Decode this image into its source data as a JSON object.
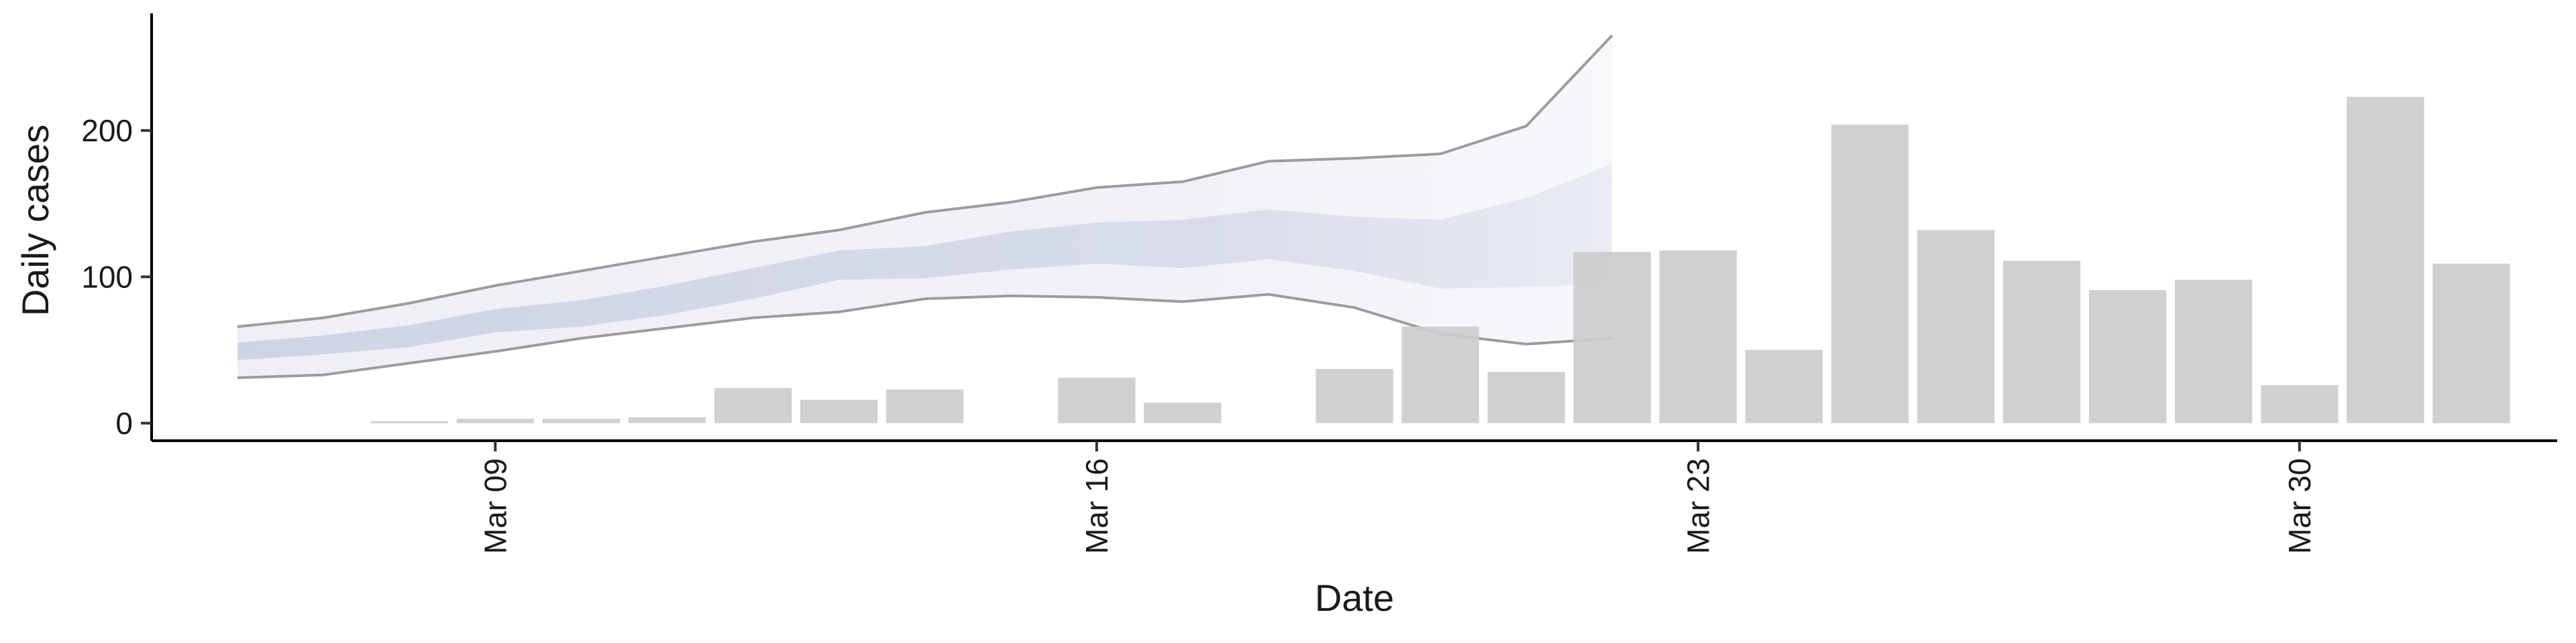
{
  "chart_data": {
    "type": "bar",
    "xlabel": "Date",
    "ylabel": "Daily cases",
    "x_axis": {
      "ticks": [
        {
          "date": "2020-03-09",
          "label": "Mar 09"
        },
        {
          "date": "2020-03-16",
          "label": "Mar 16"
        },
        {
          "date": "2020-03-23",
          "label": "Mar 23"
        },
        {
          "date": "2020-03-30",
          "label": "Mar 30"
        }
      ],
      "xlim": [
        "2020-03-05",
        "2020-04-02"
      ]
    },
    "y_axis": {
      "ticks": [
        {
          "value": 0,
          "label": "0"
        },
        {
          "value": 100,
          "label": "100"
        },
        {
          "value": 200,
          "label": "200"
        }
      ],
      "ylim": [
        -12,
        280
      ]
    },
    "grid": false,
    "series": [
      {
        "kind": "bar",
        "color": "#cccccc",
        "points": [
          {
            "date": "2020-03-08",
            "value": 1
          },
          {
            "date": "2020-03-09",
            "value": 3
          },
          {
            "date": "2020-03-10",
            "value": 3
          },
          {
            "date": "2020-03-11",
            "value": 4
          },
          {
            "date": "2020-03-12",
            "value": 24
          },
          {
            "date": "2020-03-13",
            "value": 16
          },
          {
            "date": "2020-03-14",
            "value": 23
          },
          {
            "date": "2020-03-16",
            "value": 31
          },
          {
            "date": "2020-03-17",
            "value": 14
          },
          {
            "date": "2020-03-19",
            "value": 37
          },
          {
            "date": "2020-03-20",
            "value": 66
          },
          {
            "date": "2020-03-21",
            "value": 35
          },
          {
            "date": "2020-03-22",
            "value": 117
          },
          {
            "date": "2020-03-23",
            "value": 118
          },
          {
            "date": "2020-03-24",
            "value": 50
          },
          {
            "date": "2020-03-25",
            "value": 204
          },
          {
            "date": "2020-03-26",
            "value": 132
          },
          {
            "date": "2020-03-27",
            "value": 111
          },
          {
            "date": "2020-03-28",
            "value": 91
          },
          {
            "date": "2020-03-29",
            "value": 98
          },
          {
            "date": "2020-03-30",
            "value": 26
          },
          {
            "date": "2020-03-31",
            "value": 223
          },
          {
            "date": "2020-04-01",
            "value": 109
          }
        ]
      },
      {
        "kind": "ribbon",
        "role": "outer interval",
        "line_color": "#8c8c8c",
        "fill_color": "#e8eaf2",
        "points": [
          {
            "date": "2020-03-06",
            "lower": 31,
            "upper": 66
          },
          {
            "date": "2020-03-07",
            "lower": 33,
            "upper": 72
          },
          {
            "date": "2020-03-08",
            "lower": 41,
            "upper": 82
          },
          {
            "date": "2020-03-09",
            "lower": 49,
            "upper": 94
          },
          {
            "date": "2020-03-10",
            "lower": 58,
            "upper": 104
          },
          {
            "date": "2020-03-11",
            "lower": 65,
            "upper": 114
          },
          {
            "date": "2020-03-12",
            "lower": 72,
            "upper": 124
          },
          {
            "date": "2020-03-13",
            "lower": 76,
            "upper": 132
          },
          {
            "date": "2020-03-14",
            "lower": 85,
            "upper": 144
          },
          {
            "date": "2020-03-15",
            "lower": 87,
            "upper": 151
          },
          {
            "date": "2020-03-16",
            "lower": 86,
            "upper": 161
          },
          {
            "date": "2020-03-17",
            "lower": 83,
            "upper": 165
          },
          {
            "date": "2020-03-18",
            "lower": 88,
            "upper": 179
          },
          {
            "date": "2020-03-19",
            "lower": 79,
            "upper": 181
          },
          {
            "date": "2020-03-20",
            "lower": 61,
            "upper": 184
          },
          {
            "date": "2020-03-21",
            "lower": 54,
            "upper": 203
          },
          {
            "date": "2020-03-22",
            "lower": 58,
            "upper": 265
          }
        ]
      },
      {
        "kind": "ribbon",
        "role": "inner interval",
        "fill_color": "#cdd3e4",
        "points": [
          {
            "date": "2020-03-06",
            "lower": 43,
            "upper": 55
          },
          {
            "date": "2020-03-07",
            "lower": 47,
            "upper": 60
          },
          {
            "date": "2020-03-08",
            "lower": 52,
            "upper": 67
          },
          {
            "date": "2020-03-09",
            "lower": 62,
            "upper": 78
          },
          {
            "date": "2020-03-10",
            "lower": 66,
            "upper": 84
          },
          {
            "date": "2020-03-11",
            "lower": 74,
            "upper": 94
          },
          {
            "date": "2020-03-12",
            "lower": 85,
            "upper": 106
          },
          {
            "date": "2020-03-13",
            "lower": 98,
            "upper": 118
          },
          {
            "date": "2020-03-14",
            "lower": 99,
            "upper": 121
          },
          {
            "date": "2020-03-15",
            "lower": 105,
            "upper": 131
          },
          {
            "date": "2020-03-16",
            "lower": 109,
            "upper": 137
          },
          {
            "date": "2020-03-17",
            "lower": 106,
            "upper": 139
          },
          {
            "date": "2020-03-18",
            "lower": 112,
            "upper": 146
          },
          {
            "date": "2020-03-19",
            "lower": 104,
            "upper": 141
          },
          {
            "date": "2020-03-20",
            "lower": 92,
            "upper": 139
          },
          {
            "date": "2020-03-21",
            "lower": 93,
            "upper": 154
          },
          {
            "date": "2020-03-22",
            "lower": 95,
            "upper": 177
          }
        ]
      }
    ]
  }
}
